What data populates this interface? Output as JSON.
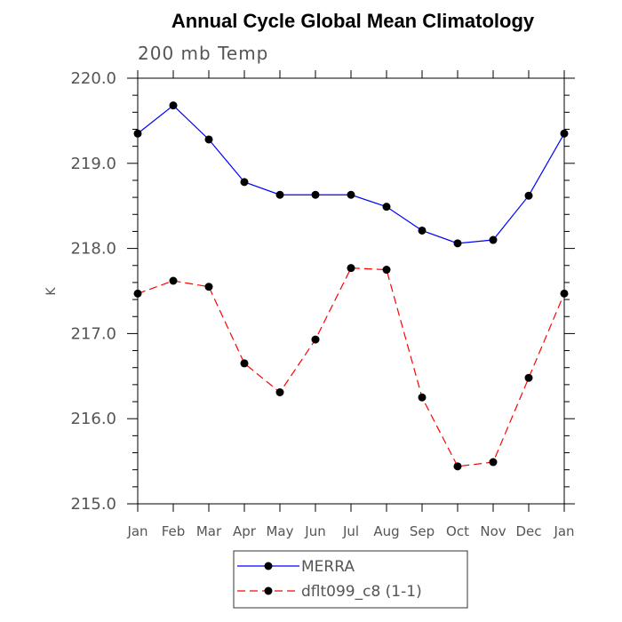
{
  "chart_data": {
    "type": "line",
    "title": "Annual Cycle Global Mean Climatology",
    "subtitle": "200 mb Temp",
    "ylabel": "K",
    "xlabel": "",
    "categories": [
      "Jan",
      "Feb",
      "Mar",
      "Apr",
      "May",
      "Jun",
      "Jul",
      "Aug",
      "Sep",
      "Oct",
      "Nov",
      "Dec",
      "Jan"
    ],
    "ylim": [
      215.0,
      220.0
    ],
    "yticks": [
      "215.0",
      "216.0",
      "217.0",
      "218.0",
      "219.0",
      "220.0"
    ],
    "grid": false,
    "legend_position": "bottom-center",
    "series": [
      {
        "name": "MERRA",
        "color": "#0000ff",
        "line_style": "solid",
        "values": [
          219.35,
          219.68,
          219.28,
          218.78,
          218.63,
          218.63,
          218.63,
          218.49,
          218.21,
          218.06,
          218.1,
          218.62,
          219.35
        ]
      },
      {
        "name": "dflt099_c8 (1-1)",
        "color": "#ff0000",
        "line_style": "dashed",
        "values": [
          217.47,
          217.62,
          217.55,
          216.65,
          216.31,
          216.93,
          217.77,
          217.75,
          216.25,
          215.44,
          215.49,
          216.48,
          217.47
        ]
      }
    ]
  }
}
